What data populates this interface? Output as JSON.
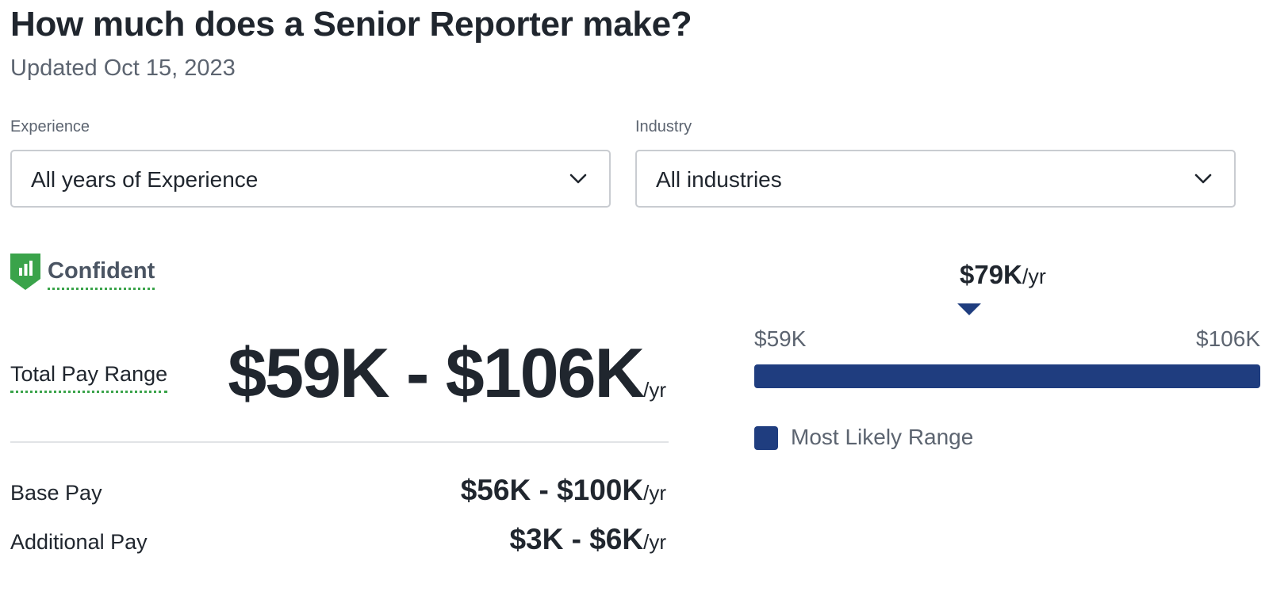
{
  "header": {
    "title": "How much does a Senior Reporter make?",
    "updated": "Updated Oct 15, 2023"
  },
  "filters": {
    "experience": {
      "label": "Experience",
      "selected": "All years of Experience"
    },
    "industry": {
      "label": "Industry",
      "selected": "All industries"
    }
  },
  "confidence": {
    "label": "Confident",
    "icon": "shield-bar-chart-icon",
    "color": "#3aa34a"
  },
  "pay": {
    "total_label": "Total Pay Range",
    "total_range": "$59K - $106K",
    "unit": "/yr",
    "base_label": "Base Pay",
    "base_range": "$56K - $100K",
    "additional_label": "Additional Pay",
    "additional_range": "$3K - $6K"
  },
  "range_chart": {
    "median": "$79K",
    "median_unit": "/yr",
    "min_label": "$59K",
    "max_label": "$106K",
    "min": 59,
    "max": 106,
    "median_value": 79,
    "legend": "Most Likely Range",
    "bar_color": "#1f3d7f"
  }
}
